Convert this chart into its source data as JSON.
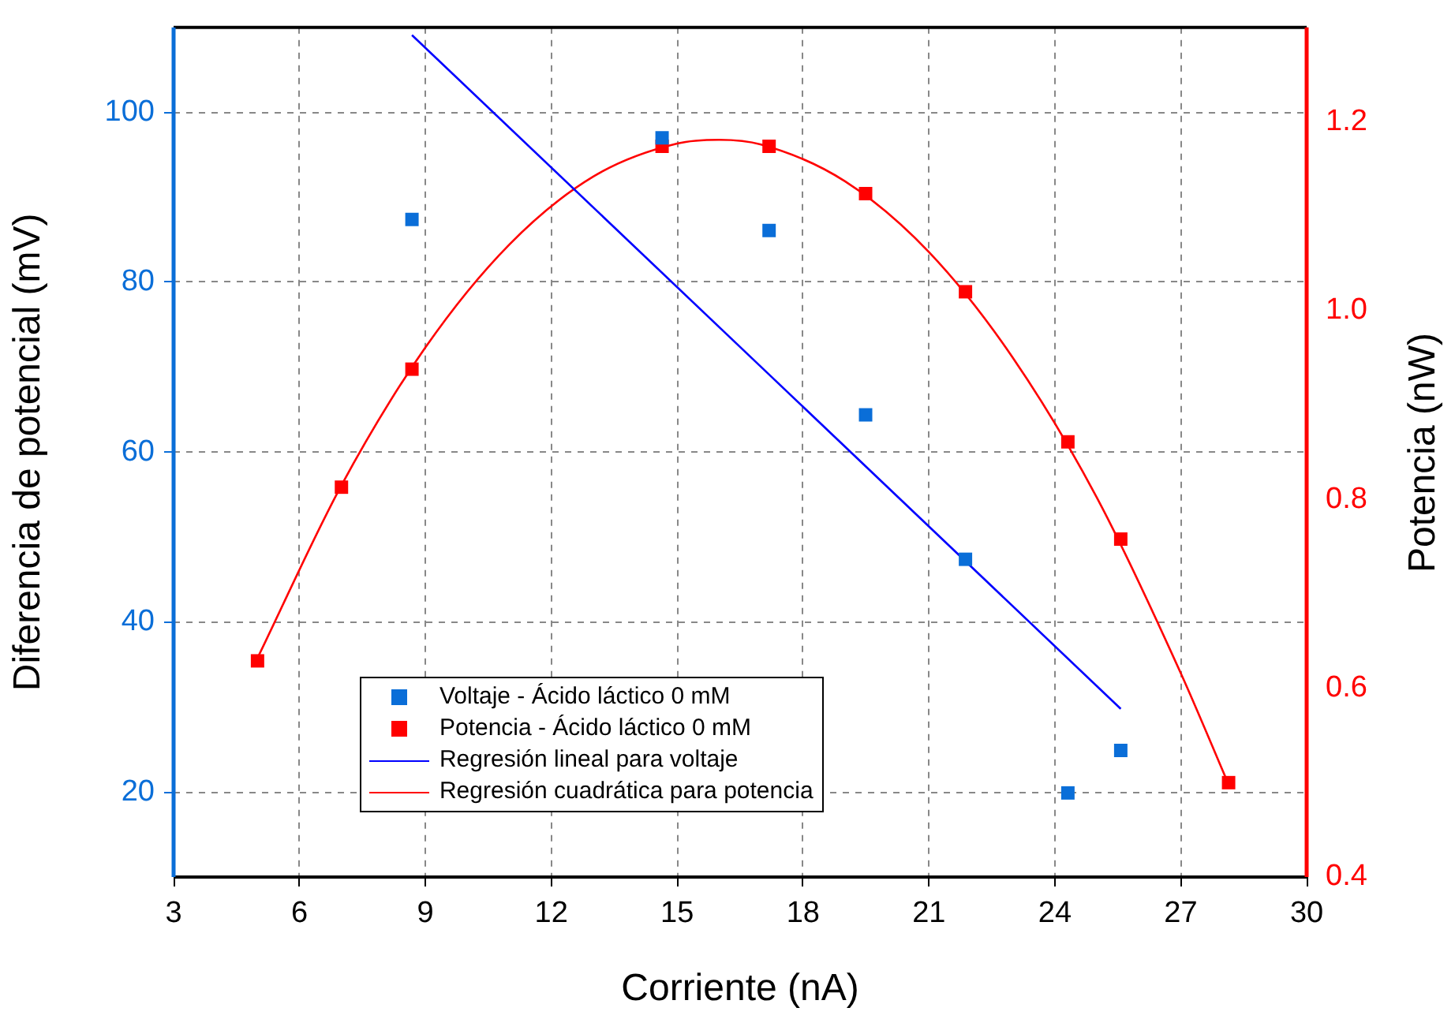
{
  "chart_data": {
    "type": "scatter",
    "xlabel": "Corriente (nA)",
    "ylabel": "Diferencia de potencial (mV)",
    "y2label": "Potencia (nW)",
    "xlim": [
      3,
      30
    ],
    "xticks": [
      3,
      6,
      9,
      12,
      15,
      18,
      21,
      24,
      27,
      30
    ],
    "ylim": [
      10,
      110
    ],
    "yticks": [
      20,
      40,
      60,
      80,
      100
    ],
    "y2lim": [
      0.4,
      1.3
    ],
    "y2ticks": [
      0.4,
      0.6,
      0.8,
      {
        "value": 1,
        "label": "1.0"
      },
      1.2
    ],
    "grid": true,
    "legend": "bottom",
    "series": [
      {
        "name": "Voltaje - Ácido láctico 0 mM",
        "marker": "square",
        "color": "#0a6ed8",
        "x": [
          8.68,
          14.64,
          17.19,
          19.49,
          21.87,
          24.31,
          25.57
        ],
        "values": [
          87.4,
          97.0,
          86.1,
          64.4,
          47.4,
          19.9,
          24.9
        ]
      },
      {
        "name": "Potencia - Ácido láctico 0 mM",
        "marker": "square",
        "axis": "y2",
        "color": "#ff0000",
        "x": [
          5,
          7,
          8.68,
          14.64,
          17.19,
          19.49,
          21.87,
          24.31,
          25.57,
          28.14
        ],
        "values": [
          0.629,
          0.813,
          0.938,
          1.174,
          1.174,
          1.124,
          1.02,
          0.861,
          0.758,
          0.5
        ]
      },
      {
        "name": "Regresión lineal para voltaje",
        "type": "line",
        "color": "#0000ff",
        "x": [
          8.68,
          25.57
        ],
        "values": [
          109.1,
          29.8
        ]
      },
      {
        "name": "Regresión cuadrática para potencia",
        "type": "line",
        "axis": "y2",
        "color": "#ff0000",
        "x": [
          5,
          7,
          9,
          11,
          13,
          15,
          16,
          17,
          19,
          21,
          23,
          25,
          27,
          28.14
        ],
        "values": [
          0.632,
          0.815,
          0.961,
          1.07,
          1.142,
          1.177,
          1.181,
          1.176,
          1.137,
          1.062,
          0.95,
          0.802,
          0.616,
          0.498
        ]
      }
    ]
  }
}
